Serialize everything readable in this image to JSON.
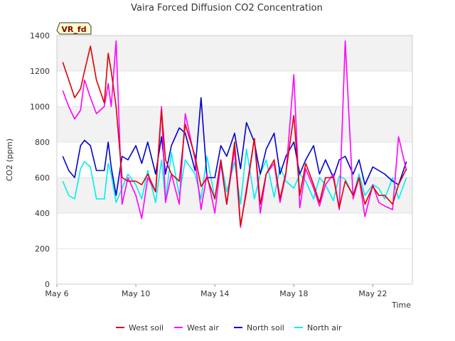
{
  "chart_data": {
    "type": "line",
    "title": "Vaira Forced Diffusion CO2 Concentration",
    "xlabel": "Time",
    "ylabel": "CO2 (ppm)",
    "site_badge": "VR_fd",
    "xlim": [
      0,
      18
    ],
    "ylim": [
      0,
      1400
    ],
    "yticks": [
      0,
      200,
      400,
      600,
      800,
      1000,
      1200,
      1400
    ],
    "xticks": [
      {
        "day": 0,
        "label": "May 6"
      },
      {
        "day": 4,
        "label": "May 10"
      },
      {
        "day": 8,
        "label": "May 14"
      },
      {
        "day": 12,
        "label": "May 18"
      },
      {
        "day": 16,
        "label": "May 22"
      }
    ],
    "legend_position": "bottom",
    "series": [
      {
        "name": "West soil",
        "color": "#dd0000",
        "x": [
          0.3,
          0.6,
          0.9,
          1.2,
          1.4,
          1.7,
          2.0,
          2.4,
          2.6,
          2.75,
          3.0,
          3.3,
          3.6,
          4.0,
          4.3,
          4.6,
          5.0,
          5.3,
          5.5,
          5.8,
          6.2,
          6.5,
          7.0,
          7.3,
          7.6,
          8.0,
          8.3,
          8.6,
          9.0,
          9.3,
          9.6,
          10.0,
          10.3,
          10.6,
          11.0,
          11.3,
          11.6,
          12.0,
          12.3,
          12.6,
          13.0,
          13.3,
          13.6,
          14.0,
          14.3,
          14.6,
          15.0,
          15.3,
          15.6,
          16.0,
          16.3,
          16.6,
          17.0,
          17.3,
          17.7
        ],
        "y": [
          1250,
          1150,
          1050,
          1100,
          1200,
          1340,
          1150,
          1020,
          1300,
          1200,
          1000,
          600,
          580,
          580,
          560,
          620,
          520,
          980,
          700,
          620,
          580,
          900,
          720,
          550,
          600,
          480,
          700,
          450,
          800,
          330,
          520,
          820,
          450,
          620,
          700,
          480,
          630,
          950,
          500,
          680,
          560,
          460,
          600,
          600,
          430,
          580,
          500,
          600,
          450,
          550,
          500,
          500,
          450,
          560,
          650
        ]
      },
      {
        "name": "West air",
        "color": "#ff00ff",
        "x": [
          0.3,
          0.6,
          0.9,
          1.2,
          1.4,
          1.7,
          2.0,
          2.4,
          2.6,
          2.75,
          3.0,
          3.3,
          3.6,
          4.0,
          4.3,
          4.6,
          5.0,
          5.3,
          5.5,
          5.8,
          6.2,
          6.5,
          7.0,
          7.3,
          7.6,
          8.0,
          8.3,
          8.6,
          9.0,
          9.3,
          9.6,
          10.0,
          10.3,
          10.6,
          11.0,
          11.3,
          11.6,
          12.0,
          12.3,
          12.6,
          13.0,
          13.3,
          13.6,
          14.0,
          14.3,
          14.6,
          15.0,
          15.3,
          15.6,
          16.0,
          16.3,
          16.6,
          17.0,
          17.3,
          17.7
        ],
        "y": [
          1090,
          1000,
          930,
          980,
          1150,
          1050,
          960,
          1000,
          1130,
          1000,
          1370,
          450,
          600,
          500,
          370,
          600,
          520,
          1000,
          460,
          620,
          450,
          960,
          700,
          420,
          620,
          400,
          680,
          450,
          760,
          320,
          540,
          820,
          400,
          620,
          680,
          460,
          620,
          1180,
          430,
          650,
          540,
          440,
          560,
          620,
          420,
          1370,
          480,
          600,
          380,
          560,
          460,
          440,
          420,
          830,
          640
        ]
      },
      {
        "name": "North soil",
        "color": "#0000cc",
        "x": [
          0.3,
          0.6,
          0.9,
          1.2,
          1.4,
          1.7,
          2.0,
          2.4,
          2.6,
          2.75,
          3.0,
          3.3,
          3.6,
          4.0,
          4.3,
          4.6,
          5.0,
          5.3,
          5.5,
          5.8,
          6.2,
          6.5,
          7.0,
          7.3,
          7.6,
          8.0,
          8.3,
          8.6,
          9.0,
          9.3,
          9.6,
          10.0,
          10.3,
          10.6,
          11.0,
          11.3,
          11.6,
          12.0,
          12.3,
          12.6,
          13.0,
          13.3,
          13.6,
          14.0,
          14.3,
          14.6,
          15.0,
          15.3,
          15.6,
          16.0,
          16.3,
          16.6,
          17.0,
          17.3,
          17.7
        ],
        "y": [
          720,
          640,
          600,
          780,
          810,
          780,
          640,
          640,
          800,
          660,
          500,
          720,
          700,
          780,
          680,
          800,
          620,
          830,
          620,
          780,
          880,
          850,
          640,
          1050,
          600,
          600,
          780,
          720,
          850,
          650,
          910,
          800,
          620,
          760,
          850,
          620,
          720,
          800,
          620,
          700,
          780,
          620,
          700,
          600,
          700,
          720,
          620,
          700,
          560,
          660,
          640,
          620,
          580,
          560,
          690
        ]
      },
      {
        "name": "North air",
        "color": "#00eeee",
        "x": [
          0.3,
          0.6,
          0.9,
          1.2,
          1.4,
          1.7,
          2.0,
          2.4,
          2.6,
          2.75,
          3.0,
          3.3,
          3.6,
          4.0,
          4.3,
          4.6,
          5.0,
          5.3,
          5.5,
          5.8,
          6.2,
          6.5,
          7.0,
          7.3,
          7.6,
          8.0,
          8.3,
          8.6,
          9.0,
          9.3,
          9.6,
          10.0,
          10.3,
          10.6,
          11.0,
          11.3,
          11.6,
          12.0,
          12.3,
          12.6,
          13.0,
          13.3,
          13.6,
          14.0,
          14.3,
          14.6,
          15.0,
          15.3,
          15.6,
          16.0,
          16.3,
          16.6,
          17.0,
          17.3,
          17.7
        ],
        "y": [
          580,
          500,
          480,
          650,
          690,
          660,
          480,
          480,
          680,
          620,
          460,
          540,
          620,
          560,
          480,
          640,
          460,
          700,
          470,
          740,
          500,
          700,
          620,
          480,
          720,
          480,
          700,
          520,
          690,
          450,
          760,
          480,
          620,
          700,
          490,
          660,
          580,
          540,
          620,
          580,
          480,
          600,
          560,
          470,
          610,
          590,
          500,
          620,
          500,
          560,
          540,
          480,
          600,
          480,
          600
        ]
      }
    ]
  }
}
